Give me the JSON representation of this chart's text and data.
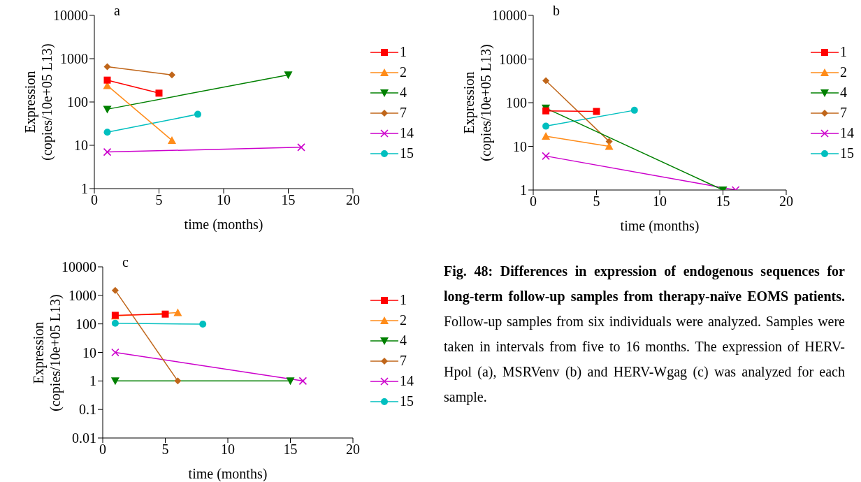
{
  "chart_data": [
    {
      "type": "line",
      "title": "a",
      "xlabel": "time (months)",
      "ylabel": "Expression (copies/10e+05 L13)",
      "log": "y",
      "xlim": [
        0,
        20
      ],
      "xticks": [
        0,
        5,
        10,
        15,
        20
      ],
      "ylim": [
        1,
        10000
      ],
      "yticks": [
        1,
        10,
        100,
        1000,
        10000
      ],
      "legend": "right",
      "series": [
        {
          "name": "1",
          "color": "#ff0000",
          "marker": "square",
          "x": [
            1,
            5
          ],
          "values": [
            320,
            160
          ]
        },
        {
          "name": "2",
          "color": "#ff8c1a",
          "marker": "triangle",
          "x": [
            1,
            6
          ],
          "values": [
            240,
            13
          ]
        },
        {
          "name": "4",
          "color": "#008000",
          "marker": "triangle-down",
          "x": [
            1,
            15
          ],
          "values": [
            68,
            420
          ]
        },
        {
          "name": "7",
          "color": "#c0661a",
          "marker": "diamond",
          "x": [
            1,
            6
          ],
          "values": [
            650,
            420
          ]
        },
        {
          "name": "14",
          "color": "#cc00cc",
          "marker": "cross",
          "x": [
            1,
            16
          ],
          "values": [
            7,
            9
          ]
        },
        {
          "name": "15",
          "color": "#00bfbf",
          "marker": "circle",
          "x": [
            1,
            8
          ],
          "values": [
            20,
            52
          ]
        }
      ]
    },
    {
      "type": "line",
      "title": "b",
      "xlabel": "time (months)",
      "ylabel": "Expression (copies/10e+05 L13)",
      "log": "y",
      "xlim": [
        0,
        20
      ],
      "xticks": [
        0,
        5,
        10,
        15,
        20
      ],
      "ylim": [
        1,
        10000
      ],
      "yticks": [
        1,
        10,
        100,
        1000,
        10000
      ],
      "legend": "right",
      "series": [
        {
          "name": "1",
          "color": "#ff0000",
          "marker": "square",
          "x": [
            1,
            5
          ],
          "values": [
            65,
            63
          ]
        },
        {
          "name": "2",
          "color": "#ff8c1a",
          "marker": "triangle",
          "x": [
            1,
            6
          ],
          "values": [
            17,
            10
          ]
        },
        {
          "name": "4",
          "color": "#008000",
          "marker": "triangle-down",
          "x": [
            1,
            15
          ],
          "values": [
            75,
            1
          ]
        },
        {
          "name": "7",
          "color": "#c0661a",
          "marker": "diamond",
          "x": [
            1,
            6
          ],
          "values": [
            320,
            13
          ]
        },
        {
          "name": "14",
          "color": "#cc00cc",
          "marker": "cross",
          "x": [
            1,
            16
          ],
          "values": [
            6,
            1
          ]
        },
        {
          "name": "15",
          "color": "#00bfbf",
          "marker": "circle",
          "x": [
            1,
            8
          ],
          "values": [
            29,
            67
          ]
        }
      ]
    },
    {
      "type": "line",
      "title": "c",
      "xlabel": "time (months)",
      "ylabel": "Expression (copies/10e+05 L13)",
      "log": "y",
      "xlim": [
        0,
        20
      ],
      "xticks": [
        0,
        5,
        10,
        15,
        20
      ],
      "ylim": [
        0.01,
        10000
      ],
      "yticks": [
        0.01,
        0.1,
        1,
        10,
        100,
        1000,
        10000
      ],
      "legend": "right",
      "series": [
        {
          "name": "1",
          "color": "#ff0000",
          "marker": "square",
          "x": [
            1,
            5
          ],
          "values": [
            200,
            220
          ]
        },
        {
          "name": "2",
          "color": "#ff8c1a",
          "marker": "triangle",
          "x": [
            1,
            6
          ],
          "values": [
            190,
            250
          ]
        },
        {
          "name": "4",
          "color": "#008000",
          "marker": "triangle-down",
          "x": [
            1,
            15
          ],
          "values": [
            1,
            1
          ]
        },
        {
          "name": "7",
          "color": "#c0661a",
          "marker": "diamond",
          "x": [
            1,
            6
          ],
          "values": [
            1500,
            1
          ]
        },
        {
          "name": "14",
          "color": "#cc00cc",
          "marker": "cross",
          "x": [
            1,
            16
          ],
          "values": [
            10,
            1
          ]
        },
        {
          "name": "15",
          "color": "#00bfbf",
          "marker": "circle",
          "x": [
            1,
            8
          ],
          "values": [
            105,
            98
          ]
        }
      ]
    },
    {
      "type": "other",
      "title": "Fig. 48: Differences in expression of endogenous sequences for long-term follow-up samples from therapy-naïve EOMS patients.",
      "annotations": [
        "Follow-up samples from six individuals were analyzed. Samples were taken in intervals from five to 16 months. The expression of HERV-Hpol (a), MSRVenv (b) and HERV-Wgag (c) was analyzed for each sample."
      ]
    }
  ]
}
